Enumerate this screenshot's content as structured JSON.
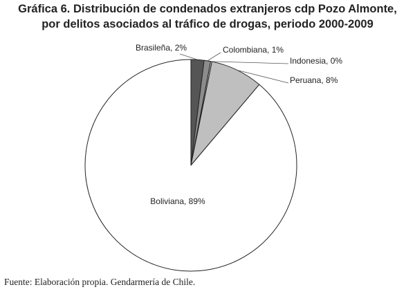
{
  "chart_data": {
    "type": "pie",
    "title_line1": "Gráfica 6. Distribución de condenados extranjeros cdp Pozo Almonte,",
    "title_line2": "por delitos asociados al tráfico de drogas, periodo 2000-2009",
    "slices": [
      {
        "label": "Brasileña, 2%",
        "value": 2,
        "color": "#555555"
      },
      {
        "label": "Colombiana, 1%",
        "value": 1,
        "color": "#8c8c8c"
      },
      {
        "label": "Indonesia, 0%",
        "value": 0.2,
        "color": "#d9d9d9"
      },
      {
        "label": "Peruana, 8%",
        "value": 8,
        "color": "#bfbfbf"
      },
      {
        "label": "Boliviana, 89%",
        "value": 89,
        "color": "#ffffff"
      }
    ],
    "legend": "none"
  },
  "source_note": "Fuente: Elaboración propia. Gendarmería de Chile."
}
